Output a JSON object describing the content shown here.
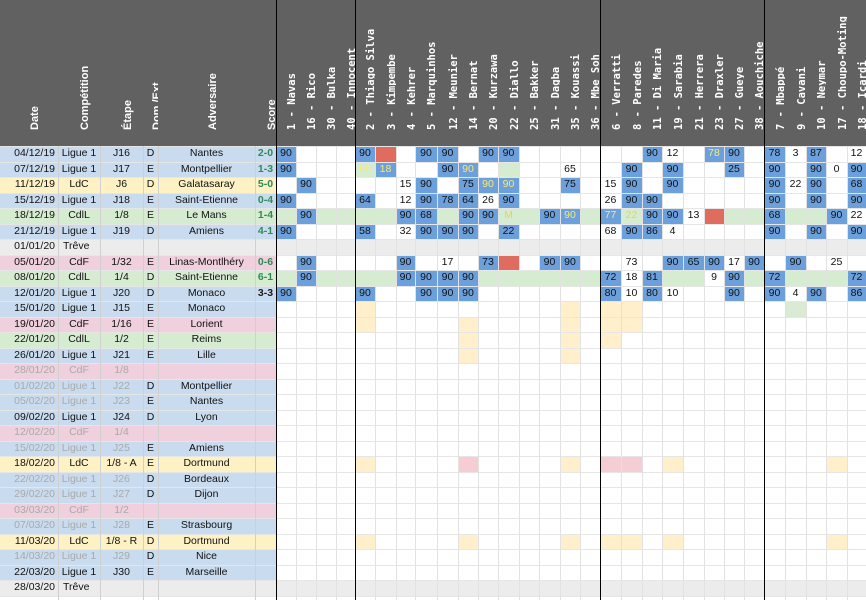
{
  "headers": {
    "date": "Date",
    "competition": "Compétition",
    "stage": "Étape",
    "venue": "Dom./Ext.",
    "opponent": "Adversaire",
    "score": "Score"
  },
  "players": [
    "1 - Navas",
    "16 - Rico",
    "30 - Bulka",
    "40 - Innocent",
    "2 - Thiago Silva",
    "3 - Kimpembe",
    "4 - Kehrer",
    "5 - Marquinhos",
    "12 - Meunier",
    "14 - Bernat",
    "20 - Kurzawa",
    "22 - Diallo",
    "25 - Bakker",
    "31 - Dagba",
    "35 - Kouassi",
    "36 - Mbe Soh",
    "6 - Verratti",
    "8 - Paredes",
    "11 - Di Maria",
    "19 - Sarabia",
    "21 - Herrera",
    "23 - Draxler",
    "27 - Gueye",
    "38 - Aouchiche",
    "7 - Mbappé",
    "9 - Cavani",
    "10 - Neymar",
    "17 - Choupo-Moting",
    "18 - Icardi"
  ],
  "colors": {
    "header": "#616161",
    "blue_rowbg": "#c9dcef",
    "green_rowbg": "#d6ecd1",
    "yellow_rowbg": "#fef1c4",
    "pink_rowbg": "#efd0dc",
    "gray_rowbg": "#ececec",
    "played": "#6ca0dc",
    "unused_green": "#d6ecd1",
    "red": "#e06b5f",
    "called_yellow": "#fff0cb",
    "called_pink": "#f5cdd2",
    "called_green": "#d9ecd3",
    "highlight_text": "#fde96a",
    "win": "#2e8b57",
    "draw": "#1a1a1a",
    "loss": "#d08a18"
  },
  "matches": [
    {
      "date": "04/12/19",
      "comp": "Ligue 1",
      "stage": "J16",
      "venue": "D",
      "opp": "Nantes",
      "score": "2-0",
      "result": "win",
      "kind": "L1",
      "cells": {
        "0": "90:b",
        "4": "90:b",
        "5": ":r",
        "7": "90:b",
        "8": "90:b",
        "10": "90:b",
        "11": "90:b",
        "18": "90:b",
        "19": "12",
        "21": "78:b:y",
        "22": "90:b",
        "24": "78:b",
        "25": "3",
        "26": "87:b",
        "28": "12"
      }
    },
    {
      "date": "07/12/19",
      "comp": "Ligue 1",
      "stage": "J17",
      "venue": "E",
      "opp": "Montpellier",
      "score": "1-3",
      "result": "win",
      "kind": "L1",
      "cells": {
        "0": "90:b",
        "4": "90:g:y",
        "5": "18:b:y",
        "8": "90:b",
        "9": "90:b:y",
        "11": ":g:y2",
        "14": "65",
        "17": "90:b",
        "19": "90:b",
        "22": "25:b",
        "24": "90:b",
        "26": "90:b",
        "27": "0",
        "28": "90:b"
      }
    },
    {
      "date": "11/12/19",
      "comp": "LdC",
      "stage": "J6",
      "venue": "D",
      "opp": "Galatasaray",
      "score": "5-0",
      "result": "win",
      "kind": "LdC",
      "cells": {
        "1": "90:b",
        "6": "15",
        "7": "90:b",
        "9": "75:b",
        "10": "90:b:y",
        "11": "90:b:y",
        "14": "75:b",
        "16": "15",
        "17": "90:b",
        "19": "90:b",
        "24": "90:b",
        "25": "22",
        "26": "90:b",
        "28": "68:b"
      }
    },
    {
      "date": "15/12/19",
      "comp": "Ligue 1",
      "stage": "J18",
      "venue": "E",
      "opp": "Saint-Etienne",
      "score": "0-4",
      "result": "win",
      "kind": "L1",
      "cells": {
        "0": "90:b",
        "4": "64:b:y2",
        "6": "12",
        "7": "90:b",
        "8": "78:b",
        "9": "64:b",
        "10": "26",
        "11": "90:b",
        "16": "26",
        "17": "90:b",
        "18": "90:b",
        "24": "90:b",
        "26": "90:b",
        "28": "90:b"
      }
    },
    {
      "date": "18/12/19",
      "comp": "CdlL",
      "stage": "1/8",
      "venue": "E",
      "opp": "Le Mans",
      "score": "1-4",
      "result": "win",
      "kind": "CdlL",
      "cells": {
        "1": "90:b",
        "6": "90:b",
        "7": "68:b",
        "9": "90:b",
        "10": "90:b",
        "11": "M:g:y2",
        "13": "90:b",
        "14": "90:b:y",
        "16": "77:b:y",
        "17": "22:g:y2",
        "18": "90:b",
        "19": "90:b",
        "20": "13",
        "21": ":r",
        "24": "68:b",
        "27": "90:b",
        "28": "22"
      }
    },
    {
      "date": "21/12/19",
      "comp": "Ligue 1",
      "stage": "J19",
      "venue": "D",
      "opp": "Amiens",
      "score": "4-1",
      "result": "win",
      "kind": "L1",
      "cells": {
        "0": "90:b",
        "4": "58:b:y2",
        "6": "32",
        "7": "90:b",
        "8": "90:b",
        "9": "90:b",
        "11": "22:b:y2",
        "16": "68",
        "17": "90:b",
        "18": "86:b",
        "19": "4",
        "24": "90:b",
        "26": "90:b",
        "28": "90:b"
      }
    },
    {
      "date": "01/01/20",
      "comp": "Trêve",
      "stage": "",
      "venue": "",
      "opp": "",
      "score": "",
      "result": "",
      "kind": "treve",
      "cells": {}
    },
    {
      "date": "05/01/20",
      "comp": "CdF",
      "stage": "1/32",
      "venue": "E",
      "opp": "Linas-Montlhéry",
      "score": "0-6",
      "result": "win",
      "kind": "CdF",
      "cells": {
        "1": "90:b",
        "6": "90:b",
        "8": "17",
        "10": "73:b",
        "11": ":r",
        "13": "90:b",
        "14": "90:b",
        "17": "73",
        "19": "90:b",
        "20": "65:b",
        "21": "90:b",
        "22": "17",
        "23": "90:b",
        "25": "90:b",
        "27": "25"
      }
    },
    {
      "date": "08/01/20",
      "comp": "CdlL",
      "stage": "1/4",
      "venue": "D",
      "opp": "Saint-Etienne",
      "score": "6-1",
      "result": "win",
      "kind": "CdlL",
      "cells": {
        "1": "90:b",
        "6": "90:b",
        "7": "90:b",
        "8": "90:b",
        "9": "90:b",
        "16": "72:b",
        "17": "18",
        "18": "81:b",
        "21": "9",
        "22": "90:b",
        "24": "72:b",
        "28": "72:b"
      }
    },
    {
      "date": "12/01/20",
      "comp": "Ligue 1",
      "stage": "J20",
      "venue": "D",
      "opp": "Monaco",
      "score": "3-3",
      "result": "draw",
      "kind": "L1",
      "cells": {
        "0": "90:b",
        "4": "90:b",
        "7": "90:b",
        "8": "90:b",
        "9": "90:b",
        "16": "80:b",
        "17": "10",
        "18": "80:b",
        "19": "10",
        "22": "90:b",
        "24": "90:b",
        "25": "4",
        "26": "90:b",
        "28": "86:b"
      }
    },
    {
      "date": "15/01/20",
      "comp": "Ligue 1",
      "stage": "J15",
      "venue": "E",
      "opp": "Monaco",
      "score": "",
      "result": "",
      "kind": "L1",
      "cells": {
        "4": ":yc",
        "14": ":yc",
        "16": ":yc",
        "17": ":yc",
        "25": ":gc"
      }
    },
    {
      "date": "19/01/20",
      "comp": "CdF",
      "stage": "1/16",
      "venue": "E",
      "opp": "Lorient",
      "score": "",
      "result": "",
      "kind": "CdF",
      "cells": {
        "4": ":yc",
        "9": ":yc",
        "14": ":yc",
        "16": ":yc",
        "17": ":yc"
      }
    },
    {
      "date": "22/01/20",
      "comp": "CdlL",
      "stage": "1/2",
      "venue": "E",
      "opp": "Reims",
      "score": "",
      "result": "",
      "kind": "CdlL",
      "cells": {
        "9": ":yc",
        "14": ":yc",
        "16": ":yc"
      }
    },
    {
      "date": "26/01/20",
      "comp": "Ligue 1",
      "stage": "J21",
      "venue": "E",
      "opp": "Lille",
      "score": "",
      "result": "",
      "kind": "L1",
      "cells": {
        "9": ":yc",
        "14": ":yc"
      }
    },
    {
      "date": "28/01/20",
      "comp": "CdF",
      "stage": "1/8",
      "venue": "",
      "opp": "",
      "score": "",
      "result": "",
      "kind": "CdF-tbd",
      "cells": {}
    },
    {
      "date": "01/02/20",
      "comp": "Ligue 1",
      "stage": "J22",
      "venue": "D",
      "opp": "Montpellier",
      "score": "",
      "result": "",
      "kind": "L1-tbd",
      "cells": {}
    },
    {
      "date": "05/02/20",
      "comp": "Ligue 1",
      "stage": "J23",
      "venue": "E",
      "opp": "Nantes",
      "score": "",
      "result": "",
      "kind": "L1-tbd",
      "cells": {}
    },
    {
      "date": "09/02/20",
      "comp": "Ligue 1",
      "stage": "J24",
      "venue": "D",
      "opp": "Lyon",
      "score": "",
      "result": "",
      "kind": "L1",
      "cells": {}
    },
    {
      "date": "12/02/20",
      "comp": "CdF",
      "stage": "1/4",
      "venue": "",
      "opp": "",
      "score": "",
      "result": "",
      "kind": "CdF-tbd",
      "cells": {}
    },
    {
      "date": "15/02/20",
      "comp": "Ligue 1",
      "stage": "J25",
      "venue": "E",
      "opp": "Amiens",
      "score": "",
      "result": "",
      "kind": "L1-tbd",
      "cells": {}
    },
    {
      "date": "18/02/20",
      "comp": "LdC",
      "stage": "1/8 - A",
      "venue": "E",
      "opp": "Dortmund",
      "score": "",
      "result": "",
      "kind": "LdC",
      "cells": {
        "4": ":yc",
        "9": ":pc",
        "14": ":yc",
        "16": ":pc",
        "17": ":pc",
        "19": ":yc",
        "27": ":yc"
      }
    },
    {
      "date": "22/02/20",
      "comp": "Ligue 1",
      "stage": "J26",
      "venue": "D",
      "opp": "Bordeaux",
      "score": "",
      "result": "",
      "kind": "L1-tbd",
      "cells": {}
    },
    {
      "date": "29/02/20",
      "comp": "Ligue 1",
      "stage": "J27",
      "venue": "D",
      "opp": "Dijon",
      "score": "",
      "result": "",
      "kind": "L1-tbd",
      "cells": {}
    },
    {
      "date": "03/03/20",
      "comp": "CdF",
      "stage": "1/2",
      "venue": "",
      "opp": "",
      "score": "",
      "result": "",
      "kind": "CdF-tbd",
      "cells": {}
    },
    {
      "date": "07/03/20",
      "comp": "Ligue 1",
      "stage": "J28",
      "venue": "E",
      "opp": "Strasbourg",
      "score": "",
      "result": "",
      "kind": "L1-tbd",
      "cells": {}
    },
    {
      "date": "11/03/20",
      "comp": "LdC",
      "stage": "1/8 - R",
      "venue": "D",
      "opp": "Dortmund",
      "score": "",
      "result": "",
      "kind": "LdC",
      "cells": {
        "4": ":yc",
        "9": ":yc",
        "14": ":yc",
        "16": ":yc",
        "17": ":yc",
        "19": ":yc",
        "27": ":yc"
      }
    },
    {
      "date": "14/03/20",
      "comp": "Ligue 1",
      "stage": "J29",
      "venue": "D",
      "opp": "Nice",
      "score": "",
      "result": "",
      "kind": "L1-tbd",
      "cells": {}
    },
    {
      "date": "22/03/20",
      "comp": "Ligue 1",
      "stage": "J30",
      "venue": "E",
      "opp": "Marseille",
      "score": "",
      "result": "",
      "kind": "L1",
      "cells": {}
    },
    {
      "date": "28/03/20",
      "comp": "Trêve",
      "stage": "",
      "venue": "",
      "opp": "",
      "score": "",
      "result": "",
      "kind": "treve",
      "cells": {}
    }
  ]
}
